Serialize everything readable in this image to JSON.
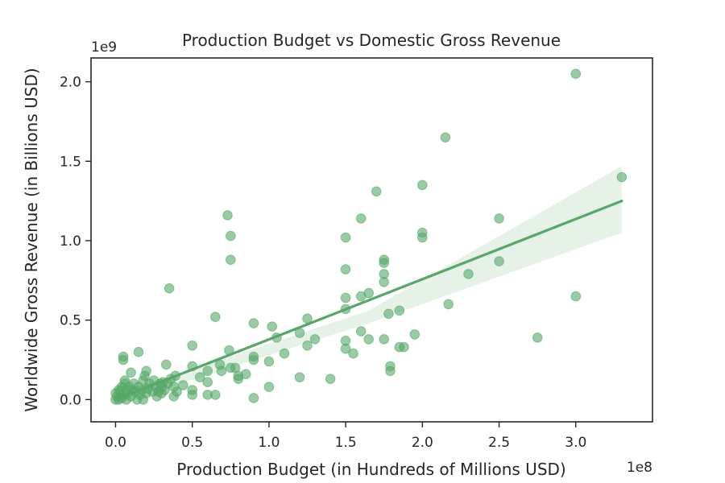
{
  "chart_data": {
    "type": "scatter",
    "title": "Production Budget vs Domestic Gross Revenue",
    "xlabel": "Production Budget (in Hundreds of Millions USD)",
    "ylabel": "Worldwide Gross Revenue (in Billions USD)",
    "x_offset_label": "1e8",
    "y_offset_label": "1e9",
    "x_scale": 100000000,
    "y_scale": 1000000000,
    "xlim": [
      -0.16,
      3.5
    ],
    "ylim": [
      -0.14,
      2.15
    ],
    "x_ticks": [
      0.0,
      0.5,
      1.0,
      1.5,
      2.0,
      2.5,
      3.0
    ],
    "x_tick_labels": [
      "0.0",
      "0.5",
      "1.0",
      "1.5",
      "2.0",
      "2.5",
      "3.0"
    ],
    "y_ticks": [
      0.0,
      0.5,
      1.0,
      1.5,
      2.0
    ],
    "y_tick_labels": [
      "0.0",
      "0.5",
      "1.0",
      "1.5",
      "2.0"
    ],
    "grid": false,
    "legend": "none",
    "color": "#55a868",
    "regression": {
      "x": [
        0.0,
        3.3
      ],
      "y": [
        0.0,
        1.25
      ],
      "ci_lower": [
        -0.03,
        1.05
      ],
      "ci_upper": [
        0.03,
        1.47
      ],
      "ci_mid_lower": [
        0.0,
        0.48
      ],
      "ci_mid_upper": [
        0.0,
        0.56
      ],
      "ci_mid_x": 1.65
    },
    "points": [
      [
        0.0,
        0.0
      ],
      [
        0.0,
        0.04
      ],
      [
        0.01,
        0.02
      ],
      [
        0.02,
        0.06
      ],
      [
        0.02,
        0.0
      ],
      [
        0.03,
        0.05
      ],
      [
        0.04,
        0.08
      ],
      [
        0.04,
        0.01
      ],
      [
        0.05,
        0.03
      ],
      [
        0.05,
        0.27
      ],
      [
        0.05,
        0.25
      ],
      [
        0.06,
        0.1
      ],
      [
        0.06,
        0.12
      ],
      [
        0.07,
        0.06
      ],
      [
        0.07,
        0.0
      ],
      [
        0.08,
        0.04
      ],
      [
        0.09,
        0.08
      ],
      [
        0.1,
        0.17
      ],
      [
        0.1,
        0.02
      ],
      [
        0.11,
        0.06
      ],
      [
        0.12,
        0.1
      ],
      [
        0.13,
        0.05
      ],
      [
        0.14,
        0.0
      ],
      [
        0.15,
        0.3
      ],
      [
        0.15,
        0.08
      ],
      [
        0.16,
        0.03
      ],
      [
        0.17,
        0.06
      ],
      [
        0.18,
        0.12
      ],
      [
        0.18,
        0.0
      ],
      [
        0.19,
        0.15
      ],
      [
        0.2,
        0.18
      ],
      [
        0.2,
        0.04
      ],
      [
        0.21,
        0.07
      ],
      [
        0.22,
        0.1
      ],
      [
        0.24,
        0.05
      ],
      [
        0.25,
        0.12
      ],
      [
        0.26,
        0.08
      ],
      [
        0.27,
        0.02
      ],
      [
        0.28,
        0.05
      ],
      [
        0.29,
        0.1
      ],
      [
        0.3,
        0.04
      ],
      [
        0.3,
        0.08
      ],
      [
        0.31,
        0.11
      ],
      [
        0.32,
        0.06
      ],
      [
        0.33,
        0.22
      ],
      [
        0.34,
        0.1
      ],
      [
        0.35,
        0.7
      ],
      [
        0.36,
        0.13
      ],
      [
        0.38,
        0.08
      ],
      [
        0.38,
        0.02
      ],
      [
        0.39,
        0.15
      ],
      [
        0.4,
        0.05
      ],
      [
        0.44,
        0.09
      ],
      [
        0.5,
        0.34
      ],
      [
        0.5,
        0.21
      ],
      [
        0.5,
        0.06
      ],
      [
        0.5,
        0.03
      ],
      [
        0.55,
        0.14
      ],
      [
        0.6,
        0.11
      ],
      [
        0.6,
        0.03
      ],
      [
        0.6,
        0.18
      ],
      [
        0.65,
        0.52
      ],
      [
        0.65,
        0.03
      ],
      [
        0.68,
        0.22
      ],
      [
        0.69,
        0.18
      ],
      [
        0.73,
        1.16
      ],
      [
        0.74,
        0.31
      ],
      [
        0.75,
        1.03
      ],
      [
        0.75,
        0.88
      ],
      [
        0.75,
        0.2
      ],
      [
        0.78,
        0.2
      ],
      [
        0.8,
        0.15
      ],
      [
        0.8,
        0.13
      ],
      [
        0.85,
        0.16
      ],
      [
        0.9,
        0.48
      ],
      [
        0.9,
        0.27
      ],
      [
        0.9,
        0.25
      ],
      [
        0.9,
        0.01
      ],
      [
        1.0,
        0.24
      ],
      [
        1.0,
        0.08
      ],
      [
        1.02,
        0.46
      ],
      [
        1.05,
        0.39
      ],
      [
        1.1,
        0.29
      ],
      [
        1.2,
        0.42
      ],
      [
        1.2,
        0.14
      ],
      [
        1.25,
        0.51
      ],
      [
        1.25,
        0.34
      ],
      [
        1.3,
        0.38
      ],
      [
        1.4,
        0.13
      ],
      [
        1.5,
        1.02
      ],
      [
        1.5,
        0.82
      ],
      [
        1.5,
        0.64
      ],
      [
        1.5,
        0.57
      ],
      [
        1.5,
        0.37
      ],
      [
        1.5,
        0.32
      ],
      [
        1.55,
        0.29
      ],
      [
        1.6,
        1.14
      ],
      [
        1.6,
        0.65
      ],
      [
        1.6,
        0.43
      ],
      [
        1.65,
        0.38
      ],
      [
        1.65,
        0.67
      ],
      [
        1.7,
        1.31
      ],
      [
        1.75,
        0.88
      ],
      [
        1.75,
        0.86
      ],
      [
        1.75,
        0.79
      ],
      [
        1.75,
        0.74
      ],
      [
        1.75,
        0.38
      ],
      [
        1.78,
        0.54
      ],
      [
        1.79,
        0.21
      ],
      [
        1.79,
        0.18
      ],
      [
        1.85,
        0.56
      ],
      [
        1.85,
        0.33
      ],
      [
        1.88,
        0.33
      ],
      [
        1.95,
        0.41
      ],
      [
        2.0,
        1.35
      ],
      [
        2.0,
        1.05
      ],
      [
        2.0,
        1.02
      ],
      [
        2.15,
        1.65
      ],
      [
        2.17,
        0.6
      ],
      [
        2.3,
        0.79
      ],
      [
        2.5,
        1.14
      ],
      [
        2.5,
        0.87
      ],
      [
        2.75,
        0.39
      ],
      [
        3.0,
        2.05
      ],
      [
        3.0,
        0.65
      ],
      [
        3.3,
        1.4
      ]
    ]
  }
}
